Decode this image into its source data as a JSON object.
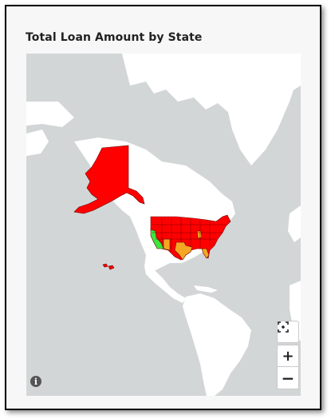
{
  "widget": {
    "title": "Total Loan Amount by State"
  },
  "map": {
    "colors": {
      "ocean": "#d3d6d7",
      "land": "#ffffff",
      "state_high": "#ff0000",
      "state_mid": "#f5a623",
      "state_low": "#3de63d",
      "border": "#6b0000"
    },
    "states": [
      {
        "name": "Alaska",
        "level": "high"
      },
      {
        "name": "Hawaii",
        "level": "high"
      },
      {
        "name": "California",
        "level": "low"
      },
      {
        "name": "Texas",
        "level": "mid"
      },
      {
        "name": "Arizona",
        "level": "mid"
      },
      {
        "name": "Georgia",
        "level": "mid"
      },
      {
        "name": "Florida",
        "level": "mid"
      },
      {
        "name": "Other states",
        "level": "high"
      }
    ]
  },
  "controls": {
    "fit_icon": "fit-to-screen-icon",
    "zoom_in": "+",
    "zoom_out": "−",
    "info": "i"
  }
}
